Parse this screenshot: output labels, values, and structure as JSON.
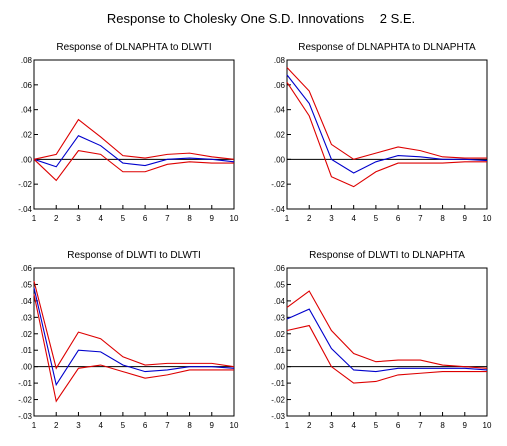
{
  "title": "Response to Cholesky One S.D. Innovations",
  "band_label": "2 S.E.",
  "colors": {
    "response": "#0000cc",
    "band": "#dd0000",
    "zero": "#000000",
    "frame": "#000000"
  },
  "chart_data": [
    {
      "type": "line",
      "title": "Response of DLNAPHTA to DLWTI",
      "x": [
        1,
        2,
        3,
        4,
        5,
        6,
        7,
        8,
        9,
        10
      ],
      "ylim": [
        -0.04,
        0.08
      ],
      "yticks": [
        -0.04,
        -0.02,
        0.0,
        0.02,
        0.04,
        0.06,
        0.08
      ],
      "ytick_labels": [
        "-.04",
        "-.02",
        ".00",
        ".02",
        ".04",
        ".06",
        ".08"
      ],
      "series": [
        {
          "role": "response",
          "values": [
            0.0,
            -0.006,
            0.019,
            0.011,
            -0.003,
            -0.005,
            0.0,
            0.001,
            0.0,
            -0.002
          ]
        },
        {
          "role": "upper",
          "values": [
            0.0,
            0.004,
            0.032,
            0.018,
            0.003,
            0.001,
            0.004,
            0.005,
            0.002,
            0.0
          ]
        },
        {
          "role": "lower",
          "values": [
            0.0,
            -0.017,
            0.007,
            0.004,
            -0.01,
            -0.01,
            -0.004,
            -0.002,
            -0.003,
            -0.003
          ]
        }
      ]
    },
    {
      "type": "line",
      "title": "Response of DLNAPHTA to DLNAPHTA",
      "x": [
        1,
        2,
        3,
        4,
        5,
        6,
        7,
        8,
        9,
        10
      ],
      "ylim": [
        -0.04,
        0.08
      ],
      "yticks": [
        -0.04,
        -0.02,
        0.0,
        0.02,
        0.04,
        0.06,
        0.08
      ],
      "ytick_labels": [
        "-.04",
        "-.02",
        ".00",
        ".02",
        ".04",
        ".06",
        ".08"
      ],
      "series": [
        {
          "role": "response",
          "values": [
            0.068,
            0.045,
            0.0,
            -0.011,
            -0.002,
            0.003,
            0.002,
            0.0,
            0.0,
            -0.001
          ]
        },
        {
          "role": "upper",
          "values": [
            0.074,
            0.055,
            0.012,
            0.0,
            0.005,
            0.01,
            0.007,
            0.002,
            0.001,
            0.001
          ]
        },
        {
          "role": "lower",
          "values": [
            0.062,
            0.035,
            -0.014,
            -0.022,
            -0.01,
            -0.003,
            -0.003,
            -0.003,
            -0.002,
            -0.002
          ]
        }
      ]
    },
    {
      "type": "line",
      "title": "Response of DLWTI to DLWTI",
      "x": [
        1,
        2,
        3,
        4,
        5,
        6,
        7,
        8,
        9,
        10
      ],
      "ylim": [
        -0.03,
        0.06
      ],
      "yticks": [
        -0.03,
        -0.02,
        -0.01,
        0.0,
        0.01,
        0.02,
        0.03,
        0.04,
        0.05,
        0.06
      ],
      "ytick_labels": [
        "-.03",
        "-.02",
        "-.01",
        ".00",
        ".01",
        ".02",
        ".03",
        ".04",
        ".05",
        ".06"
      ],
      "series": [
        {
          "role": "response",
          "values": [
            0.048,
            -0.011,
            0.01,
            0.009,
            0.001,
            -0.003,
            -0.002,
            0.0,
            0.0,
            -0.001
          ]
        },
        {
          "role": "upper",
          "values": [
            0.052,
            -0.001,
            0.021,
            0.017,
            0.006,
            0.001,
            0.002,
            0.002,
            0.002,
            0.0
          ]
        },
        {
          "role": "lower",
          "values": [
            0.044,
            -0.021,
            -0.001,
            0.001,
            -0.003,
            -0.007,
            -0.005,
            -0.002,
            -0.002,
            -0.002
          ]
        }
      ]
    },
    {
      "type": "line",
      "title": "Response of DLWTI to DLNAPHTA",
      "x": [
        1,
        2,
        3,
        4,
        5,
        6,
        7,
        8,
        9,
        10
      ],
      "ylim": [
        -0.03,
        0.06
      ],
      "yticks": [
        -0.03,
        -0.02,
        -0.01,
        0.0,
        0.01,
        0.02,
        0.03,
        0.04,
        0.05,
        0.06
      ],
      "ytick_labels": [
        "-.03",
        "-.02",
        "-.01",
        ".00",
        ".01",
        ".02",
        ".03",
        ".04",
        ".05",
        ".06"
      ],
      "series": [
        {
          "role": "response",
          "values": [
            0.029,
            0.035,
            0.011,
            -0.002,
            -0.003,
            -0.001,
            -0.001,
            -0.001,
            -0.001,
            -0.002
          ]
        },
        {
          "role": "upper",
          "values": [
            0.036,
            0.046,
            0.022,
            0.008,
            0.003,
            0.004,
            0.004,
            0.001,
            0.0,
            -0.001
          ]
        },
        {
          "role": "lower",
          "values": [
            0.022,
            0.025,
            0.0,
            -0.01,
            -0.009,
            -0.005,
            -0.004,
            -0.003,
            -0.003,
            -0.003
          ]
        }
      ]
    }
  ]
}
